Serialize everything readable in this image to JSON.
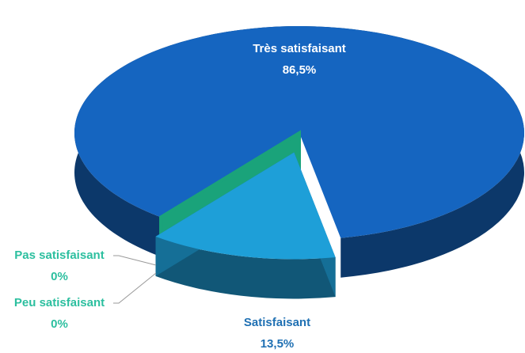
{
  "chart_data": {
    "type": "pie",
    "categories": [
      "Très satisfaisant",
      "Satisfaisant",
      "Peu satisfaisant",
      "Pas satisfaisant"
    ],
    "values": [
      86.5,
      13.5,
      0,
      0
    ],
    "value_labels": [
      "86,5%",
      "13,5%",
      "0%",
      "0%"
    ],
    "colors": [
      "#1565c0",
      "#1e9fd8",
      "#1aa37a",
      "#1aa37a"
    ]
  }
}
